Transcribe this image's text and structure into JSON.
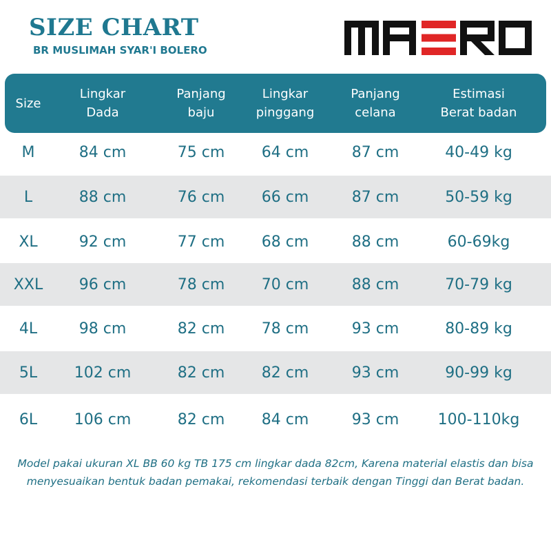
{
  "title": "SIZE CHART",
  "subtitle": "BR MUSLIMAH SYAR'I BOLERO",
  "brand": {
    "logo_text": "MAERO",
    "color": "#111111",
    "accent": "#e02626"
  },
  "colors": {
    "header_bg": "#217a90",
    "text": "#1f6f84",
    "row_shade": "#e5e6e7"
  },
  "table": {
    "headers": [
      "Size",
      "Lingkar\nDada",
      "Panjang\nbaju",
      "Lingkar\npinggang",
      "Panjang\ncelana",
      "Estimasi\nBerat badan"
    ],
    "rows": [
      [
        "M",
        "84 cm",
        "75 cm",
        "64 cm",
        "87 cm",
        "40-49 kg"
      ],
      [
        "L",
        "88 cm",
        "76 cm",
        "66 cm",
        "87 cm",
        "50-59 kg"
      ],
      [
        "XL",
        "92 cm",
        "77 cm",
        "68 cm",
        "88 cm",
        "60-69kg"
      ],
      [
        "XXL",
        "96 cm",
        "78 cm",
        "70 cm",
        "88 cm",
        "70-79 kg"
      ],
      [
        "4L",
        "98 cm",
        "82 cm",
        "78 cm",
        "93 cm",
        "80-89 kg"
      ],
      [
        "5L",
        "102 cm",
        "82 cm",
        "82 cm",
        "93 cm",
        "90-99 kg"
      ],
      [
        "6L",
        "106 cm",
        "82 cm",
        "84 cm",
        "93 cm",
        "100-110kg"
      ]
    ]
  },
  "note": "Model pakai ukuran XL BB 60 kg TB 175 cm lingkar dada 82cm, Karena material  elastis dan bisa menyesuaikan bentuk badan pemakai, rekomendasi terbaik dengan Tinggi dan Berat badan."
}
